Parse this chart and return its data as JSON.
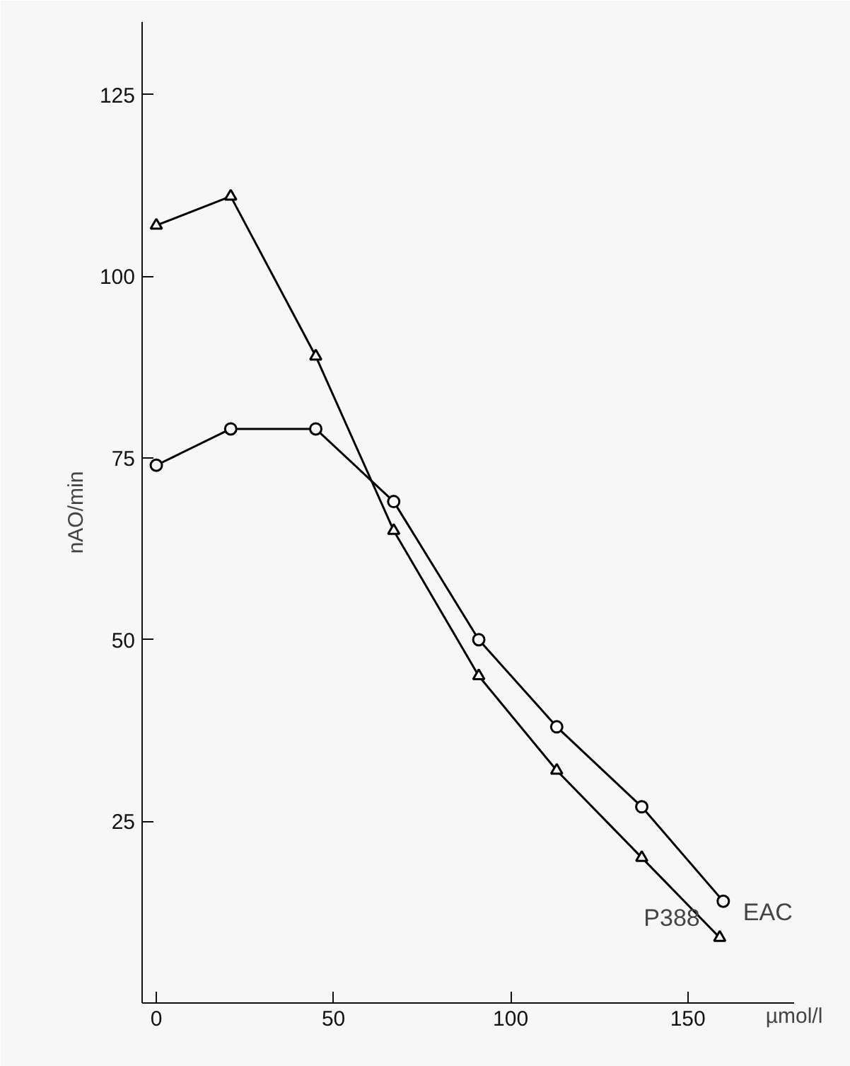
{
  "chart_data": {
    "type": "line",
    "xlabel": "µmol/l",
    "ylabel": "nAO/min",
    "xlim": [
      -4,
      180
    ],
    "ylim": [
      0,
      135
    ],
    "xticks": [
      0,
      50,
      100,
      150
    ],
    "yticks": [
      25,
      50,
      75,
      100,
      125
    ],
    "grid": false,
    "series": [
      {
        "name": "P388",
        "color": "#000000",
        "marker": "triangle",
        "x": [
          0,
          21,
          45,
          67,
          91,
          113,
          137,
          159
        ],
        "values": [
          107,
          111,
          89,
          65,
          45,
          32,
          20,
          9
        ]
      },
      {
        "name": "EAC",
        "color": "#000000",
        "marker": "circle",
        "x": [
          0,
          21,
          45,
          67,
          91,
          113,
          137,
          160
        ],
        "values": [
          74,
          79,
          79,
          69,
          50,
          38,
          27,
          14
        ]
      }
    ]
  }
}
